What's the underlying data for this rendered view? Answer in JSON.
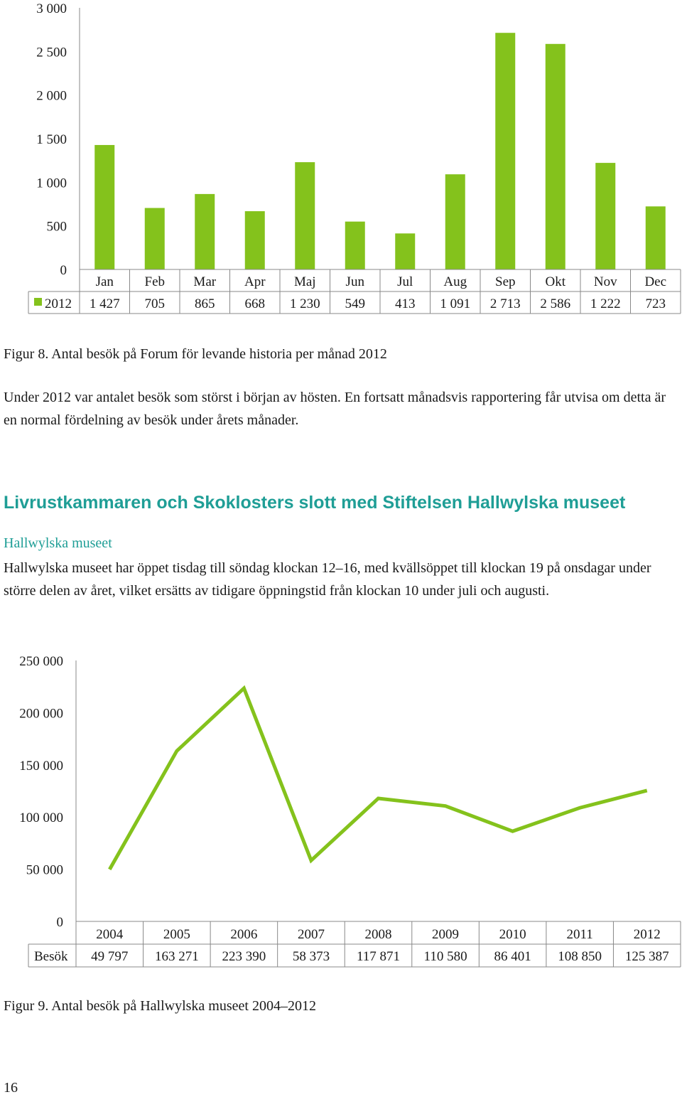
{
  "chart_data": [
    {
      "type": "bar",
      "categories": [
        "Jan",
        "Feb",
        "Mar",
        "Apr",
        "Maj",
        "Jun",
        "Jul",
        "Aug",
        "Sep",
        "Okt",
        "Nov",
        "Dec"
      ],
      "series": [
        {
          "name": "2012",
          "values": [
            1427,
            705,
            865,
            668,
            1230,
            549,
            413,
            1091,
            2713,
            2586,
            1222,
            723
          ],
          "labels": [
            "1 427",
            "705",
            "865",
            "668",
            "1 230",
            "549",
            "413",
            "1 091",
            "2 713",
            "2 586",
            "1 222",
            "723"
          ]
        }
      ],
      "yticks": [
        "3 000",
        "2 500",
        "2 000",
        "1 500",
        "1 000",
        "500",
        "0"
      ],
      "ylim": [
        0,
        3000
      ],
      "data_table": true,
      "grid": false,
      "color": "#84c21c"
    },
    {
      "type": "line",
      "categories": [
        "2004",
        "2005",
        "2006",
        "2007",
        "2008",
        "2009",
        "2010",
        "2011",
        "2012"
      ],
      "series": [
        {
          "name": "Besök",
          "values": [
            49797,
            163271,
            223390,
            58373,
            117871,
            110580,
            86401,
            108850,
            125387
          ],
          "labels": [
            "49 797",
            "163 271",
            "223 390",
            "58 373",
            "117 871",
            "110 580",
            "86 401",
            "108 850",
            "125 387"
          ]
        }
      ],
      "yticks": [
        "250 000",
        "200 000",
        "150 000",
        "100 000",
        "50 000",
        "0"
      ],
      "ylim": [
        0,
        250000
      ],
      "data_table": true,
      "grid": false,
      "color": "#84c21c"
    }
  ],
  "text": {
    "figure8_caption": "Figur 8. Antal besök på Forum för levande historia per månad 2012",
    "para1": "Under 2012 var antalet besök som störst i början av hösten. En fortsatt månadsvis rapportering får utvisa om detta är en normal fördelning av besök under årets månader.",
    "heading": "Livrustkammaren och Skoklosters slott med Stiftelsen Hallwylska museet",
    "subheading": "Hallwylska museet",
    "para2": "Hallwylska museet har öppet tisdag till söndag klockan 12–16, med kvällsöppet till klockan 19 på onsdagar under större delen av året, vilket ersätts av tidigare öppningstid från klockan 10 under juli och augusti.",
    "figure9_caption": "Figur 9. Antal besök på Hallwylska museet 2004–2012",
    "page_number": "16"
  }
}
